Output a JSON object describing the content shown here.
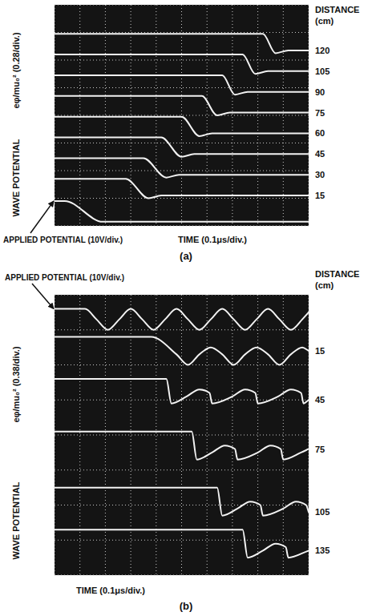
{
  "chart_data": [
    {
      "type": "line",
      "title": "(a)",
      "x_label": "TIME (0.1μs/div.)",
      "y_label": "WAVE POTENTIAL",
      "y_scale_label": "eφ/mu₀² (0.28/div.)",
      "legend_title": "DISTANCE (cm)",
      "xlim": [
        0,
        1
      ],
      "ylim": [
        0,
        8
      ],
      "xticks": [
        0,
        0.1,
        0.2,
        0.3,
        0.4,
        0.5,
        0.6,
        0.7,
        0.8,
        0.9,
        1
      ],
      "yticks": [
        0,
        1,
        2,
        3,
        4,
        5,
        6,
        7,
        8
      ],
      "grid": true,
      "tick_labels": false,
      "color": "#f2f2f2",
      "series": [
        {
          "name": "APPLIED POTENTIAL (10V/div.)",
          "x": [
            0,
            0.04,
            0.19,
            1
          ],
          "values": [
            0.9,
            0.9,
            0.15,
            0.15
          ]
        },
        {
          "name": "15",
          "x": [
            0,
            0.28,
            0.37,
            0.42,
            1
          ],
          "values": [
            1.7,
            1.7,
            1.0,
            1.1,
            1.1
          ]
        },
        {
          "name": "30",
          "x": [
            0,
            0.35,
            0.44,
            0.49,
            1
          ],
          "values": [
            2.45,
            2.45,
            1.75,
            1.85,
            1.85
          ]
        },
        {
          "name": "45",
          "x": [
            0,
            0.42,
            0.5,
            0.55,
            1
          ],
          "values": [
            3.2,
            3.2,
            2.5,
            2.6,
            2.6
          ]
        },
        {
          "name": "60",
          "x": [
            0,
            0.5,
            0.57,
            0.62,
            1
          ],
          "values": [
            3.95,
            3.95,
            3.25,
            3.35,
            3.35
          ]
        },
        {
          "name": "75",
          "x": [
            0,
            0.58,
            0.64,
            0.69,
            1
          ],
          "values": [
            4.7,
            4.7,
            4.0,
            4.1,
            4.1
          ]
        },
        {
          "name": "90",
          "x": [
            0,
            0.66,
            0.71,
            0.76,
            1
          ],
          "values": [
            5.45,
            5.45,
            4.75,
            4.85,
            4.85
          ]
        },
        {
          "name": "105",
          "x": [
            0,
            0.74,
            0.79,
            0.84,
            1
          ],
          "values": [
            6.2,
            6.2,
            5.5,
            5.6,
            5.6
          ]
        },
        {
          "name": "120",
          "x": [
            0,
            0.82,
            0.87,
            0.92,
            1
          ],
          "values": [
            6.95,
            6.95,
            6.25,
            6.35,
            6.35
          ]
        }
      ]
    },
    {
      "type": "line",
      "title": "(b)",
      "x_label": "TIME (0.1μs/div.)",
      "y_label": "WAVE POTENTIAL",
      "y_scale_label": "eφ/mu₀² (0.38/div.)",
      "legend_title": "DISTANCE (cm)",
      "xlim": [
        0,
        1
      ],
      "ylim": [
        0,
        8
      ],
      "xticks": [
        0,
        0.1,
        0.2,
        0.3,
        0.4,
        0.5,
        0.6,
        0.7,
        0.8,
        0.9,
        1
      ],
      "yticks": [
        0,
        1,
        2,
        3,
        4,
        5,
        6,
        7,
        8
      ],
      "grid": true,
      "tick_labels": false,
      "color": "#f2f2f2",
      "series": [
        {
          "name": "APPLIED POTENTIAL (10V/div.)",
          "x": [
            0,
            0.12,
            0.165,
            0.21,
            0.255,
            0.3,
            0.345,
            0.39,
            0.435,
            0.48,
            0.525,
            0.57,
            0.615,
            0.66,
            0.705,
            0.75,
            0.795,
            0.84,
            0.885,
            0.93,
            0.975,
            1
          ],
          "values": [
            7.6,
            7.6,
            7.3,
            7.0,
            7.3,
            7.6,
            7.3,
            7.0,
            7.3,
            7.6,
            7.3,
            7.0,
            7.3,
            7.6,
            7.3,
            7.0,
            7.3,
            7.6,
            7.3,
            7.0,
            7.3,
            7.5
          ]
        },
        {
          "name": "15",
          "x": [
            0,
            0.38,
            0.48,
            0.525,
            0.57,
            0.615,
            0.66,
            0.705,
            0.75,
            0.795,
            0.84,
            0.885,
            0.93,
            0.975,
            1
          ],
          "values": [
            6.8,
            6.8,
            6.3,
            6.0,
            6.3,
            6.5,
            6.3,
            6.0,
            6.3,
            6.5,
            6.3,
            6.0,
            6.3,
            6.5,
            6.4
          ]
        },
        {
          "name": "45",
          "x": [
            0,
            0.44,
            0.46,
            0.52,
            0.57,
            0.61,
            0.62,
            0.7,
            0.75,
            0.79,
            0.8,
            0.88,
            0.93,
            0.97,
            0.98,
            1
          ],
          "values": [
            5.6,
            5.6,
            4.9,
            5.1,
            5.3,
            5.2,
            4.9,
            5.1,
            5.3,
            5.2,
            4.9,
            5.1,
            5.3,
            5.2,
            4.9,
            5.0
          ]
        },
        {
          "name": "75",
          "x": [
            0,
            0.54,
            0.56,
            0.62,
            0.67,
            0.71,
            0.72,
            0.8,
            0.85,
            0.89,
            0.9,
            0.97,
            1
          ],
          "values": [
            4.1,
            4.1,
            3.3,
            3.5,
            3.7,
            3.6,
            3.3,
            3.5,
            3.7,
            3.6,
            3.3,
            3.5,
            3.6
          ]
        },
        {
          "name": "105",
          "x": [
            0,
            0.64,
            0.66,
            0.72,
            0.77,
            0.81,
            0.82,
            0.9,
            0.95,
            0.99,
            1
          ],
          "values": [
            2.5,
            2.5,
            1.7,
            1.9,
            2.1,
            2.0,
            1.7,
            1.9,
            2.1,
            2.0,
            1.8
          ]
        },
        {
          "name": "135",
          "x": [
            0,
            0.74,
            0.76,
            0.82,
            0.87,
            0.91,
            0.92,
            1
          ],
          "values": [
            1.3,
            1.3,
            0.5,
            0.7,
            0.9,
            0.8,
            0.5,
            0.7
          ]
        }
      ]
    }
  ]
}
